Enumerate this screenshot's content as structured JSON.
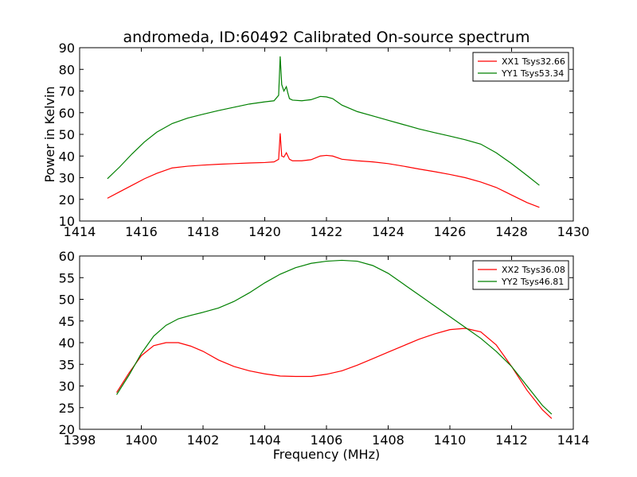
{
  "figure": {
    "title": "andromeda, ID:60492 Calibrated On-source spectrum",
    "xlabel": "Frequency (MHz)",
    "ylabel": "Power in Kelvin"
  },
  "chart_data": [
    {
      "type": "line",
      "xlim": [
        1414,
        1430
      ],
      "ylim": [
        10,
        90
      ],
      "xticks": [
        1414,
        1416,
        1418,
        1420,
        1422,
        1424,
        1426,
        1428,
        1430
      ],
      "yticks": [
        10,
        20,
        30,
        40,
        50,
        60,
        70,
        80,
        90
      ],
      "grid": false,
      "legend_position": "top-right",
      "series": [
        {
          "name": "XX1 Tsys32.66",
          "color": "#ff0000",
          "x": [
            1414.9,
            1415.3,
            1415.7,
            1416.1,
            1416.5,
            1417.0,
            1417.5,
            1418.0,
            1418.5,
            1419.0,
            1419.5,
            1420.0,
            1420.3,
            1420.45,
            1420.5,
            1420.55,
            1420.62,
            1420.7,
            1420.75,
            1420.8,
            1420.9,
            1421.2,
            1421.5,
            1421.8,
            1422.0,
            1422.2,
            1422.5,
            1423.0,
            1423.5,
            1424.0,
            1424.5,
            1425.0,
            1425.5,
            1426.0,
            1426.5,
            1427.0,
            1427.5,
            1428.0,
            1428.5,
            1428.9
          ],
          "y": [
            20.5,
            23.5,
            26.5,
            29.5,
            32.0,
            34.5,
            35.3,
            35.8,
            36.2,
            36.5,
            36.8,
            37.0,
            37.3,
            38.5,
            50.5,
            40.0,
            39.5,
            41.5,
            40.0,
            38.5,
            37.8,
            37.8,
            38.3,
            40.0,
            40.3,
            40.0,
            38.5,
            37.8,
            37.3,
            36.5,
            35.3,
            34.0,
            32.8,
            31.5,
            30.0,
            28.0,
            25.5,
            22.0,
            18.5,
            16.3
          ]
        },
        {
          "name": "YY1 Tsys53.34",
          "color": "#008000",
          "x": [
            1414.9,
            1415.3,
            1415.7,
            1416.1,
            1416.5,
            1417.0,
            1417.5,
            1418.0,
            1418.5,
            1419.0,
            1419.5,
            1420.0,
            1420.3,
            1420.45,
            1420.5,
            1420.55,
            1420.62,
            1420.7,
            1420.75,
            1420.8,
            1420.9,
            1421.2,
            1421.5,
            1421.8,
            1422.0,
            1422.2,
            1422.5,
            1423.0,
            1423.5,
            1424.0,
            1424.5,
            1425.0,
            1425.5,
            1426.0,
            1426.5,
            1427.0,
            1427.5,
            1428.0,
            1428.5,
            1428.9
          ],
          "y": [
            29.5,
            35.0,
            41.0,
            46.5,
            51.0,
            55.0,
            57.5,
            59.3,
            61.0,
            62.5,
            64.0,
            65.0,
            65.5,
            68.0,
            86.0,
            73.0,
            70.0,
            72.0,
            69.0,
            66.5,
            65.8,
            65.5,
            66.0,
            67.5,
            67.3,
            66.5,
            63.5,
            60.5,
            58.5,
            56.5,
            54.5,
            52.5,
            50.8,
            49.2,
            47.5,
            45.5,
            41.5,
            36.5,
            31.0,
            26.5
          ]
        }
      ]
    },
    {
      "type": "line",
      "xlim": [
        1398,
        1414
      ],
      "ylim": [
        20,
        60
      ],
      "xticks": [
        1398,
        1400,
        1402,
        1404,
        1406,
        1408,
        1410,
        1412,
        1414
      ],
      "yticks": [
        20,
        25,
        30,
        35,
        40,
        45,
        50,
        55,
        60
      ],
      "grid": false,
      "legend_position": "top-right",
      "series": [
        {
          "name": "XX2 Tsys36.08",
          "color": "#ff0000",
          "x": [
            1399.2,
            1399.6,
            1400.0,
            1400.4,
            1400.8,
            1401.2,
            1401.6,
            1402.0,
            1402.5,
            1403.0,
            1403.5,
            1404.0,
            1404.5,
            1405.0,
            1405.5,
            1406.0,
            1406.5,
            1407.0,
            1407.5,
            1408.0,
            1408.5,
            1409.0,
            1409.5,
            1410.0,
            1410.5,
            1411.0,
            1411.5,
            1412.0,
            1412.5,
            1413.0,
            1413.3
          ],
          "y": [
            28.5,
            33.0,
            37.0,
            39.3,
            40.0,
            40.0,
            39.2,
            38.0,
            36.0,
            34.5,
            33.5,
            32.8,
            32.3,
            32.2,
            32.2,
            32.7,
            33.5,
            34.8,
            36.3,
            37.8,
            39.3,
            40.8,
            42.0,
            43.0,
            43.3,
            42.5,
            39.5,
            34.5,
            29.0,
            24.5,
            22.5
          ]
        },
        {
          "name": "YY2 Tsys46.81",
          "color": "#008000",
          "x": [
            1399.2,
            1399.6,
            1400.0,
            1400.4,
            1400.8,
            1401.2,
            1401.6,
            1402.0,
            1402.5,
            1403.0,
            1403.5,
            1404.0,
            1404.5,
            1405.0,
            1405.5,
            1406.0,
            1406.5,
            1407.0,
            1407.5,
            1408.0,
            1408.5,
            1409.0,
            1409.5,
            1410.0,
            1410.5,
            1411.0,
            1411.5,
            1412.0,
            1412.5,
            1413.0,
            1413.3
          ],
          "y": [
            28.0,
            32.5,
            37.5,
            41.5,
            44.0,
            45.5,
            46.3,
            47.0,
            48.0,
            49.5,
            51.5,
            53.8,
            55.8,
            57.3,
            58.3,
            58.8,
            59.0,
            58.8,
            57.8,
            56.0,
            53.5,
            51.0,
            48.5,
            46.0,
            43.5,
            41.0,
            38.0,
            34.5,
            30.0,
            25.5,
            23.5
          ]
        }
      ]
    }
  ]
}
